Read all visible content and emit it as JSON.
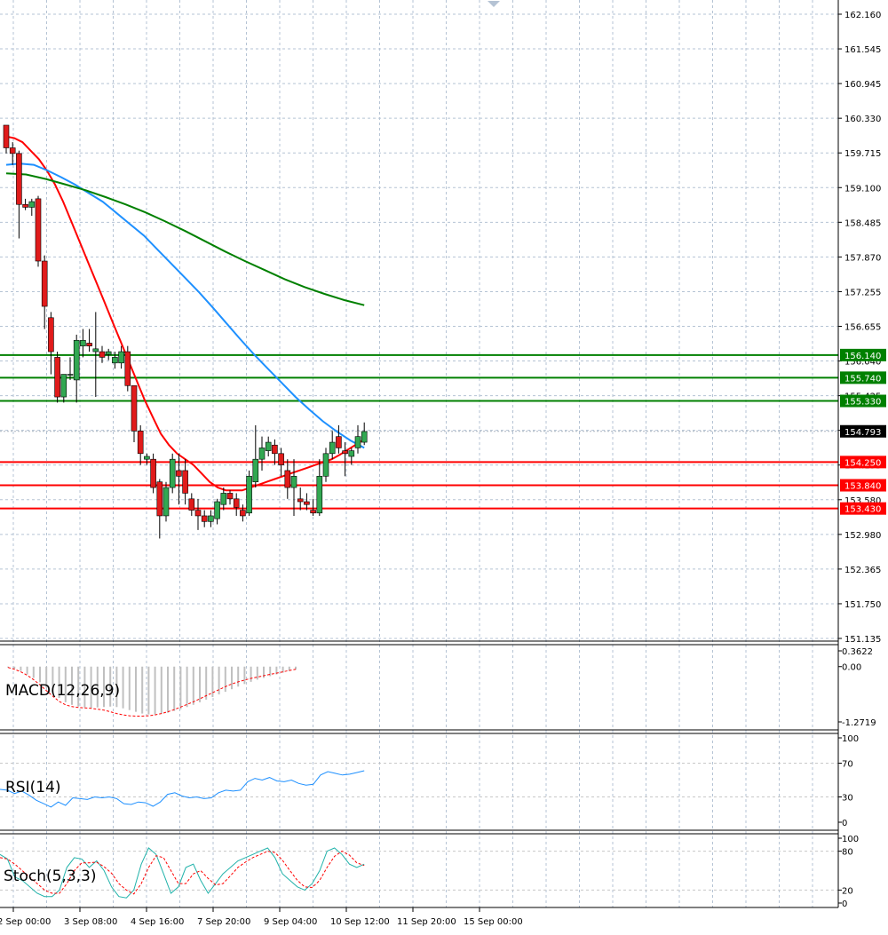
{
  "chart_data": {
    "type": "candlestick",
    "price_panel": {
      "ylim": [
        151.135,
        162.16
      ],
      "y_ticks": [
        "162.160",
        "161.545",
        "160.945",
        "160.330",
        "159.715",
        "159.100",
        "158.485",
        "157.870",
        "157.255",
        "156.655",
        "156.040",
        "155.425",
        "154.810",
        "154.195",
        "153.580",
        "152.980",
        "152.365",
        "151.750",
        "151.135"
      ],
      "current_price": "154.793",
      "candles": [
        [
          160.2,
          160.2,
          159.7,
          159.8
        ],
        [
          159.8,
          159.9,
          159.5,
          159.7
        ],
        [
          159.7,
          159.75,
          158.2,
          158.8
        ],
        [
          158.8,
          158.9,
          158.7,
          158.75
        ],
        [
          158.75,
          158.9,
          158.6,
          158.85
        ],
        [
          158.9,
          158.95,
          157.7,
          157.8
        ],
        [
          157.8,
          157.9,
          156.6,
          157.0
        ],
        [
          156.8,
          156.9,
          155.8,
          156.2
        ],
        [
          156.1,
          156.2,
          155.3,
          155.4
        ],
        [
          155.4,
          155.8,
          155.3,
          155.8
        ],
        [
          155.8,
          156.1,
          155.7,
          155.8
        ],
        [
          155.7,
          156.5,
          155.3,
          156.4
        ],
        [
          156.3,
          156.6,
          156.1,
          156.4
        ],
        [
          156.35,
          156.6,
          156.2,
          156.3
        ],
        [
          156.2,
          156.9,
          155.4,
          156.25
        ],
        [
          156.2,
          156.3,
          156.0,
          156.1
        ],
        [
          156.15,
          156.25,
          156.05,
          156.2
        ],
        [
          156.0,
          156.2,
          155.9,
          156.1
        ],
        [
          156.0,
          156.3,
          155.9,
          156.2
        ],
        [
          156.2,
          156.3,
          155.5,
          155.6
        ],
        [
          155.6,
          155.6,
          154.6,
          154.8
        ],
        [
          154.8,
          154.9,
          154.2,
          154.4
        ],
        [
          154.3,
          154.4,
          154.2,
          154.35
        ],
        [
          154.3,
          154.4,
          153.7,
          153.8
        ],
        [
          153.9,
          153.95,
          152.9,
          153.3
        ],
        [
          153.3,
          153.9,
          153.2,
          153.8
        ],
        [
          153.8,
          154.4,
          153.7,
          154.3
        ],
        [
          154.1,
          154.4,
          153.5,
          154.0
        ],
        [
          154.1,
          154.3,
          153.5,
          153.7
        ],
        [
          153.6,
          153.7,
          153.3,
          153.4
        ],
        [
          153.4,
          153.6,
          153.05,
          153.3
        ],
        [
          153.3,
          153.4,
          153.1,
          153.2
        ],
        [
          153.2,
          153.4,
          153.1,
          153.3
        ],
        [
          153.25,
          153.6,
          153.15,
          153.55
        ],
        [
          153.5,
          153.8,
          153.4,
          153.7
        ],
        [
          153.7,
          153.75,
          153.5,
          153.6
        ],
        [
          153.6,
          153.7,
          153.3,
          153.45
        ],
        [
          153.4,
          153.5,
          153.2,
          153.3
        ],
        [
          153.35,
          154.1,
          153.3,
          154.0
        ],
        [
          153.9,
          154.9,
          153.8,
          154.3
        ],
        [
          154.3,
          154.7,
          154.1,
          154.5
        ],
        [
          154.45,
          154.7,
          154.35,
          154.6
        ],
        [
          154.55,
          154.65,
          154.2,
          154.4
        ],
        [
          154.4,
          154.5,
          154.0,
          154.2
        ],
        [
          154.1,
          154.3,
          153.6,
          153.8
        ],
        [
          153.8,
          154.3,
          153.3,
          154.0
        ],
        [
          153.6,
          153.8,
          153.4,
          153.55
        ],
        [
          153.55,
          153.7,
          153.4,
          153.5
        ],
        [
          153.4,
          153.6,
          153.3,
          153.35
        ],
        [
          153.35,
          154.3,
          153.3,
          154.0
        ],
        [
          154.0,
          154.5,
          153.9,
          154.4
        ],
        [
          154.4,
          154.8,
          154.3,
          154.6
        ],
        [
          154.7,
          154.9,
          154.4,
          154.5
        ],
        [
          154.45,
          154.6,
          154.0,
          154.4
        ],
        [
          154.35,
          154.5,
          154.2,
          154.45
        ],
        [
          154.5,
          154.9,
          154.4,
          154.7
        ],
        [
          154.6,
          154.95,
          154.55,
          154.79
        ]
      ],
      "moving_averages": [
        {
          "color": "#ff0000",
          "values": [
            160.0,
            159.97,
            159.9,
            159.75,
            159.6,
            159.4,
            159.15,
            158.85,
            158.5,
            158.15,
            157.8,
            157.45,
            157.1,
            156.75,
            156.4,
            156.05,
            155.7,
            155.35,
            155.05,
            154.75,
            154.55,
            154.4,
            154.3,
            154.2,
            154.05,
            153.9,
            153.8,
            153.75,
            153.75,
            153.75,
            153.8,
            153.85,
            153.9,
            153.95,
            154.0,
            154.05,
            154.1,
            154.15,
            154.2,
            154.25,
            154.3,
            154.38,
            154.47,
            154.56,
            154.65
          ]
        },
        {
          "color": "#1e90ff",
          "values": [
            159.5,
            159.52,
            159.5,
            159.4,
            159.28,
            159.15,
            159.0,
            158.85,
            158.65,
            158.45,
            158.25,
            158.0,
            157.75,
            157.5,
            157.25,
            156.98,
            156.7,
            156.42,
            156.15,
            155.9,
            155.65,
            155.4,
            155.18,
            154.97,
            154.79,
            154.63,
            154.5
          ]
        },
        {
          "color": "#008000",
          "values": [
            159.35,
            159.33,
            159.25,
            159.15,
            159.05,
            158.93,
            158.8,
            158.66,
            158.5,
            158.33,
            158.15,
            157.97,
            157.8,
            157.64,
            157.48,
            157.34,
            157.22,
            157.11,
            157.02
          ]
        }
      ],
      "horizontal_levels": [
        {
          "value": 156.14,
          "label": "156.140",
          "color": "#008000"
        },
        {
          "value": 155.74,
          "label": "155.740",
          "color": "#008000"
        },
        {
          "value": 155.33,
          "label": "155.330",
          "color": "#008000"
        },
        {
          "value": 154.25,
          "label": "154.250",
          "color": "#ff0000"
        },
        {
          "value": 153.84,
          "label": "153.840",
          "color": "#ff0000"
        },
        {
          "value": 153.43,
          "label": "153.430",
          "color": "#ff0000"
        }
      ]
    },
    "macd_panel": {
      "title": "MACD(12,26,9)",
      "ylim": [
        -1.2719,
        0.3622
      ],
      "y_ticks": [
        "0.3622",
        "0.00",
        "-1.2719"
      ],
      "histogram": [
        -0.02,
        -0.05,
        -0.1,
        -0.18,
        -0.26,
        -0.36,
        -0.48,
        -0.6,
        -0.72,
        -0.82,
        -0.88,
        -0.92,
        -0.94,
        -0.95,
        -0.94,
        -0.93,
        -0.92,
        -0.93,
        -0.96,
        -1.0,
        -1.04,
        -1.08,
        -1.1,
        -1.1,
        -1.08,
        -1.06,
        -1.02,
        -0.98,
        -0.93,
        -0.88,
        -0.82,
        -0.76,
        -0.7,
        -0.64,
        -0.58,
        -0.52,
        -0.46,
        -0.4,
        -0.35,
        -0.3,
        -0.26,
        -0.22,
        -0.18,
        -0.14,
        -0.1,
        -0.07
      ],
      "signal": [
        -0.02,
        -0.06,
        -0.12,
        -0.2,
        -0.3,
        -0.42,
        -0.55,
        -0.68,
        -0.8,
        -0.88,
        -0.92,
        -0.94,
        -0.95,
        -0.96,
        -0.98,
        -1.0,
        -1.04,
        -1.08,
        -1.11,
        -1.13,
        -1.14,
        -1.14,
        -1.13,
        -1.11,
        -1.08,
        -1.04,
        -0.99,
        -0.93,
        -0.87,
        -0.81,
        -0.74,
        -0.67,
        -0.6,
        -0.53,
        -0.46,
        -0.4,
        -0.35,
        -0.31,
        -0.27,
        -0.24,
        -0.21,
        -0.18,
        -0.15,
        -0.12,
        -0.09,
        -0.06
      ]
    },
    "rsi_panel": {
      "title": "RSI(14)",
      "ylim": [
        0,
        100
      ],
      "y_ticks": [
        "100",
        "70",
        "30",
        "0"
      ],
      "values": [
        39,
        38,
        34,
        37,
        32,
        26,
        22,
        18,
        24,
        20,
        29,
        28,
        27,
        30,
        29,
        30,
        28,
        22,
        21,
        24,
        23,
        19,
        24,
        33,
        35,
        31,
        29,
        30,
        28,
        29,
        35,
        38,
        37,
        38,
        48,
        52,
        50,
        53,
        49,
        48,
        50,
        46,
        44,
        45,
        56,
        60,
        58,
        56,
        57,
        59,
        61
      ]
    },
    "stoch_panel": {
      "title": "Stoch(5,3,3)",
      "ylim": [
        0,
        100
      ],
      "y_ticks": [
        "100",
        "80",
        "20",
        "0"
      ],
      "k": [
        75,
        68,
        40,
        35,
        25,
        15,
        10,
        10,
        20,
        55,
        70,
        68,
        55,
        65,
        50,
        25,
        10,
        8,
        20,
        60,
        85,
        75,
        45,
        15,
        25,
        55,
        60,
        35,
        15,
        30,
        45,
        55,
        65,
        70,
        75,
        80,
        85,
        70,
        45,
        35,
        25,
        20,
        30,
        50,
        80,
        85,
        75,
        60,
        55,
        60
      ],
      "d": [
        70,
        68,
        60,
        50,
        40,
        30,
        20,
        15,
        15,
        30,
        50,
        62,
        62,
        63,
        56,
        46,
        30,
        20,
        14,
        30,
        55,
        73,
        70,
        50,
        30,
        30,
        45,
        50,
        38,
        28,
        30,
        42,
        55,
        63,
        70,
        75,
        80,
        78,
        66,
        50,
        35,
        25,
        24,
        35,
        55,
        72,
        80,
        74,
        62,
        58
      ]
    },
    "x_tick_labels": [
      "2 Sep 00:00",
      "3 Sep 08:00",
      "4 Sep 16:00",
      "7 Sep 20:00",
      "9 Sep 04:00",
      "10 Sep 12:00",
      "11 Sep 20:00",
      "15 Sep 00:00"
    ],
    "colors": {
      "bull": "#32a852",
      "bear": "#e01b1b",
      "grid": "#b5c3d4",
      "axis": "#000000",
      "rsi": "#1e90ff",
      "stoch_k": "#20b2aa",
      "stoch_d": "#ff0000",
      "macd_hist": "#c0c0c0",
      "macd_signal": "#ff0000"
    }
  }
}
